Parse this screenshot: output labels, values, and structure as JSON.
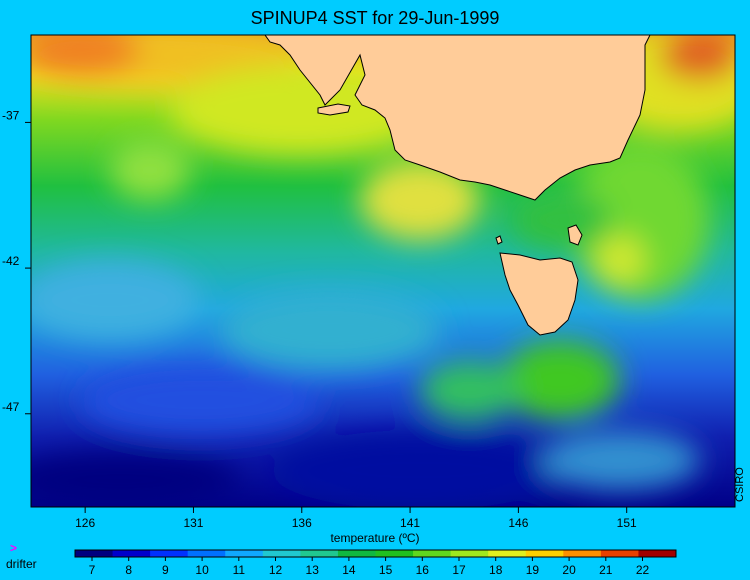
{
  "title": "SPINUP4 SST for 29-Jun-1999",
  "credit": "CSIRO",
  "x_axis": {
    "ticks": [
      "126",
      "131",
      "136",
      "141",
      "146",
      "151"
    ],
    "range": [
      123.5,
      156
    ]
  },
  "y_axis": {
    "ticks": [
      "-37",
      "-42",
      "-47"
    ],
    "range": [
      -34,
      -50.2
    ]
  },
  "legend": {
    "title": "temperature (ºC)",
    "ticks": [
      "7",
      "8",
      "9",
      "10",
      "11",
      "12",
      "13",
      "14",
      "15",
      "16",
      "17",
      "18",
      "19",
      "20",
      "21",
      "22"
    ],
    "colors": [
      "#00007f",
      "#0000cc",
      "#0030ff",
      "#0070ff",
      "#10a8ff",
      "#20c8d0",
      "#20c890",
      "#10b840",
      "#20c020",
      "#60d820",
      "#a0e820",
      "#e0f020",
      "#ffd000",
      "#ff9000",
      "#e84000",
      "#a00000"
    ]
  },
  "drifter": {
    "marker": ">",
    "label": "drifter"
  },
  "colors": {
    "background": "#00ccff",
    "land": "#ffcc99",
    "coastline": "#000000"
  }
}
